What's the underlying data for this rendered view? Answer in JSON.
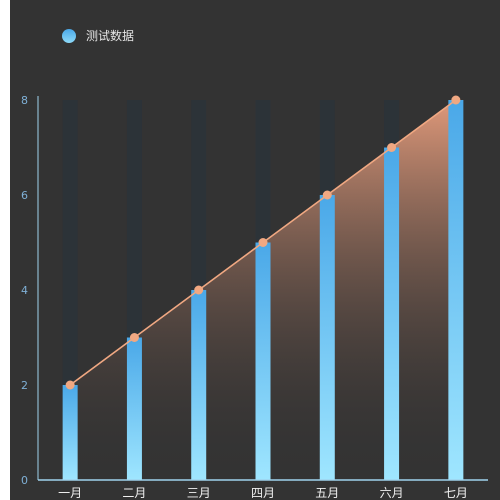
{
  "chart_data": {
    "type": "bar",
    "categories": [
      "一月",
      "二月",
      "三月",
      "四月",
      "五月",
      "六月",
      "七月"
    ],
    "series": [
      {
        "name": "测试数据",
        "type": "bar",
        "values": [
          2,
          3,
          4,
          5,
          6,
          7,
          8
        ]
      },
      {
        "type": "line-area",
        "values": [
          2,
          3,
          4,
          5,
          6,
          7,
          8
        ]
      }
    ],
    "ylim": [
      0,
      8
    ],
    "yticks": [
      0,
      2,
      4,
      6,
      8
    ],
    "grid": false,
    "legend": "top-left",
    "colors": {
      "background": "#333333",
      "bar_top": "#4aa8e8",
      "bar_bottom": "#9fe6ff",
      "bar_track": "#2c3338",
      "line": "#f0a882",
      "area_top": "#e0997a",
      "axis": "#9fd3ee"
    }
  }
}
